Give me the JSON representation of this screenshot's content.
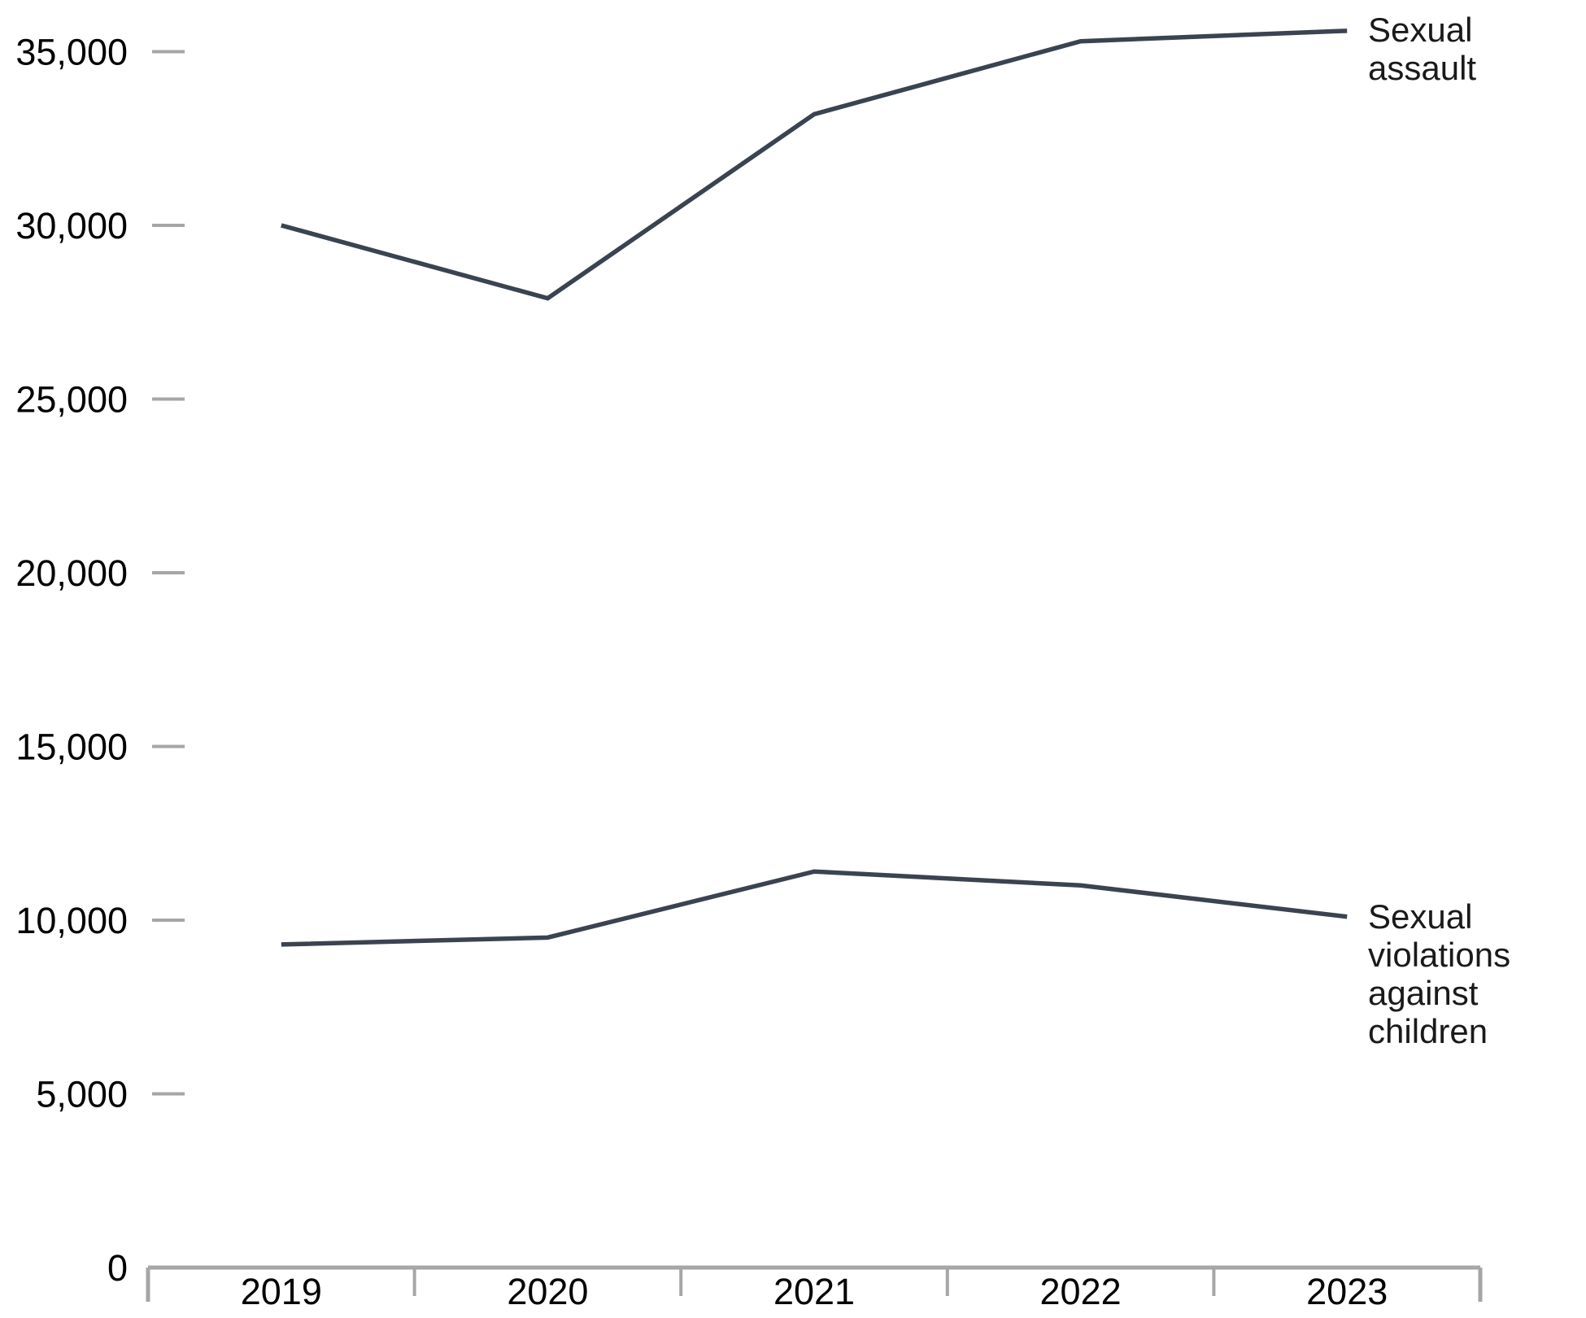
{
  "chart_data": {
    "type": "line",
    "title": "",
    "xlabel": "",
    "ylabel": "",
    "x": [
      "2019",
      "2020",
      "2021",
      "2022",
      "2023"
    ],
    "series": [
      {
        "name": "Sexual assault",
        "values": [
          30000,
          27900,
          33200,
          35300,
          35600
        ]
      },
      {
        "name": "Sexual violations against children",
        "values": [
          9300,
          9500,
          11400,
          11000,
          10100
        ]
      }
    ],
    "ylim": [
      0,
      36000
    ],
    "y_tick_values": [
      0,
      5000,
      10000,
      15000,
      20000,
      25000,
      30000,
      35000
    ],
    "y_tick_labels": [
      "0",
      "5,000",
      "10,000",
      "15,000",
      "20,000",
      "25,000",
      "30,000",
      "35,000"
    ],
    "grid": false,
    "legend_position": "end-of-line-labels",
    "colors": {
      "line": "#3a4450",
      "axis": "#a6a6a6",
      "tick": "#a6a6a6",
      "text": "#000000"
    }
  },
  "end_labels": {
    "sexual_assault": "Sexual assault",
    "sexual_violations": "Sexual violations\nagainst children"
  }
}
